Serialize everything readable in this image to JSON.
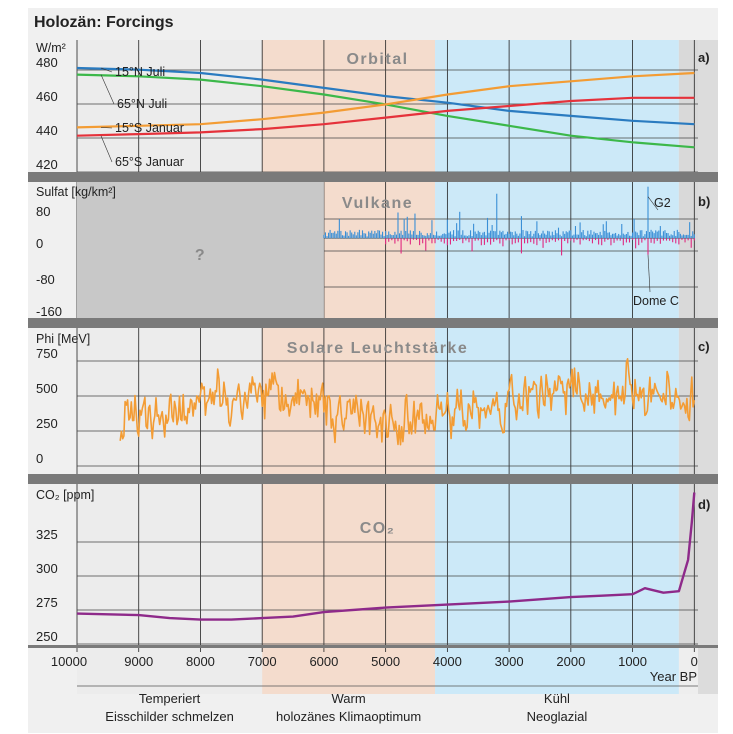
{
  "figure_title": "Holozän: Forcings",
  "x_axis": {
    "ticks": [
      "10000",
      "9000",
      "8000",
      "7000",
      "6000",
      "5000",
      "4000",
      "3000",
      "2000",
      "1000",
      "0"
    ],
    "label": "Year BP",
    "range": [
      10000,
      -60
    ]
  },
  "periods": [
    {
      "line1": "Temperiert",
      "line2": "Eisschilder schmelzen",
      "from": 10000,
      "to": 7000,
      "color": "#ececec"
    },
    {
      "line1": "Warm",
      "line2": "holozänes Klimaoptimum",
      "from": 7000,
      "to": 4200,
      "color": "#f4dccd"
    },
    {
      "line1": "Kühl",
      "line2": "Neoglazial",
      "from": 4200,
      "to": 250,
      "color": "#cce9f8"
    }
  ],
  "late_band": {
    "from": 250,
    "to": -60,
    "color": "#d9d9d9"
  },
  "chart_data": [
    {
      "type": "line",
      "panel_letter": "a)",
      "title": "Orbital",
      "ylabel": "W/m²",
      "yticks": [
        "480",
        "460",
        "440",
        "420"
      ],
      "ylim": [
        412,
        492
      ],
      "x": [
        10000,
        9000,
        8000,
        7000,
        6000,
        5000,
        4000,
        3000,
        2000,
        1000,
        0
      ],
      "series": [
        {
          "name": "15°N Juli",
          "color": "#2a7bc0",
          "values": [
            475,
            474,
            472,
            468,
            463,
            458,
            454,
            449,
            446,
            443,
            441
          ]
        },
        {
          "name": "65°N Juli",
          "color": "#3cb84a",
          "values": [
            471,
            470,
            468,
            464,
            459,
            453,
            446,
            440,
            434,
            430,
            427
          ]
        },
        {
          "name": "15°S Januar",
          "color": "#f39c34",
          "values": [
            439,
            440,
            441,
            444,
            448,
            453,
            459,
            464,
            467,
            470,
            472
          ]
        },
        {
          "name": "65°S Januar",
          "color": "#e5323b",
          "values": [
            434,
            435,
            436,
            438,
            441,
            445,
            449,
            452,
            455,
            457,
            457
          ]
        }
      ]
    },
    {
      "type": "bar",
      "panel_letter": "b)",
      "title": "Vulkane",
      "ylabel": "Sulfat [kg/km²]",
      "yticks": [
        "80",
        "0",
        "-80",
        "-160"
      ],
      "ylim": [
        -170,
        120
      ],
      "no_data_mark": "?",
      "no_data_range": [
        10000,
        6000
      ],
      "series": [
        {
          "name": "G2",
          "color": "#3a8fd6",
          "direction": "up",
          "x_start": 6000,
          "x_end": 0,
          "step": 25
        },
        {
          "name": "Dome C",
          "color": "#e02880",
          "direction": "down",
          "x_start": 5000,
          "x_end": 0,
          "step": 50
        }
      ]
    },
    {
      "type": "line",
      "panel_letter": "c)",
      "title": "Solare Leuchtstärke",
      "ylabel": "Phi [MeV]",
      "yticks": [
        "750",
        "500",
        "250",
        "0"
      ],
      "ylim": [
        -60,
        860
      ],
      "x_start": 9300,
      "x_end": 0,
      "step": 20,
      "series": [
        {
          "color": "#f39c34",
          "description": "Phi (solar modulation)"
        }
      ]
    },
    {
      "type": "line",
      "panel_letter": "d)",
      "title": "CO₂",
      "ylabel": "CO₂ [ppm]",
      "yticks": [
        "325",
        "300",
        "275",
        "250"
      ],
      "ylim": [
        243,
        350
      ],
      "x": [
        10000,
        9000,
        8500,
        8000,
        7500,
        7000,
        6500,
        6000,
        5000,
        4000,
        3000,
        2000,
        1500,
        1000,
        800,
        500,
        250,
        100,
        40,
        0
      ],
      "series": [
        {
          "color": "#8e2a8a",
          "values": [
            264,
            263,
            261,
            260,
            260,
            261,
            262,
            265,
            268,
            270,
            272,
            275,
            276,
            277,
            281,
            278,
            279,
            300,
            325,
            345
          ]
        }
      ]
    }
  ]
}
